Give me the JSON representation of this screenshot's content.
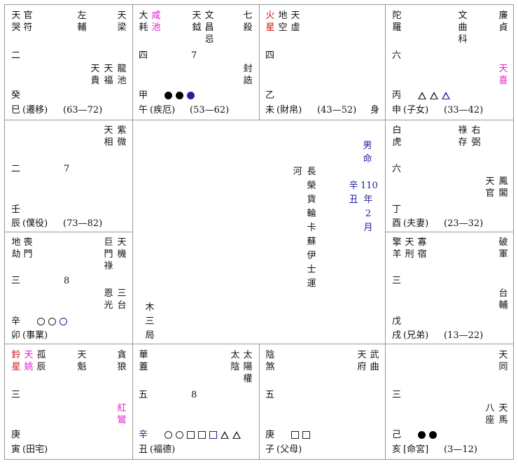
{
  "center": {
    "name": [
      "長",
      "榮",
      "貨",
      "輪",
      "卡",
      "蘇",
      "伊",
      "士",
      "運"
    ],
    "river": "河",
    "gender": [
      "男",
      "命"
    ],
    "ganzhi": [
      "辛",
      "丑"
    ],
    "year": [
      "110",
      "年",
      "2",
      "月"
    ],
    "bureau": [
      "木",
      "三",
      "局"
    ]
  },
  "palaces": {
    "si": {
      "stars": {
        "tiankua": "天哭",
        "guanfu": "官符",
        "zuofu": "左輔",
        "tianliang": "天梁",
        "tiangui": "天貴",
        "tianfu": "天福",
        "longchi": "龍池"
      },
      "num": "二",
      "stem": "癸",
      "branch": "巳",
      "name": "(遷移)",
      "range": "(63—72)"
    },
    "wu": {
      "stars": {
        "dahao": "大耗",
        "xianchi": "咸池",
        "tianyue": "天鉞",
        "wenchang": "文昌",
        "ji": "忌",
        "qisha": "七殺",
        "fenggao": "封誥"
      },
      "num": "四",
      "count": "7",
      "stem": "甲",
      "branch": "午",
      "name": "(疾厄)",
      "range": "(53—62)",
      "markers": [
        "fc",
        "fc",
        "fcb"
      ]
    },
    "wei": {
      "stars": {
        "huoxing": "火星",
        "dikong": "地空",
        "tianxu": "天虛"
      },
      "num": "四",
      "stem": "乙",
      "branch": "未",
      "name": "(財帛)",
      "range": "(43—52)",
      "shen": "身"
    },
    "shen": {
      "stars": {
        "tuoluo": "陀羅",
        "wenqu": "文曲",
        "ke": "科",
        "lianzhen": "廉貞",
        "tianxi": "天喜"
      },
      "num": "六",
      "stem": "丙",
      "branch": "申",
      "name": "(子女)",
      "range": "(33—42)",
      "markers": [
        "tr",
        "tr",
        "trb"
      ]
    },
    "chen": {
      "stars": {
        "tianxiang": "天相",
        "ziwei": "紫微"
      },
      "num": "二",
      "count": "7",
      "stem": "壬",
      "branch": "辰",
      "name": "(僕役)",
      "range": "(73—82)"
    },
    "you": {
      "stars": {
        "baihu": "白虎",
        "lucun": "祿存",
        "youbi": "右弼",
        "tianguan": "天官",
        "fengge": "鳳閣"
      },
      "num": "六",
      "stem": "丁",
      "branch": "酉",
      "name": "(夫妻)",
      "range": "(23—32)"
    },
    "mao": {
      "stars": {
        "dijie": "地劫",
        "sangmen": "喪門",
        "jumen": "巨門",
        "lu": "祿",
        "tianji": "天機",
        "enguang": "恩光",
        "santai": "三台"
      },
      "num": "三",
      "count": "8",
      "stem": "辛",
      "branch": "卯",
      "name": "(事業)",
      "markers": [
        "oc",
        "oc",
        "ocb"
      ]
    },
    "xu": {
      "stars": {
        "qingyang": "擎羊",
        "tianxing": "天刑",
        "guasu": "寡宿",
        "pojun": "破軍",
        "taifu": "台輔"
      },
      "num": "三",
      "stem": "戊",
      "branch": "戌",
      "name": "(兄弟)",
      "range": "(13—22)"
    },
    "yin": {
      "stars": {
        "lingxing": "鈴星",
        "tianyao": "天姚",
        "guchen": "孤辰",
        "tiankui": "天魁",
        "tanlang": "貪狼",
        "hongluan": "紅鸞"
      },
      "num": "三",
      "stem": "庚",
      "branch": "寅",
      "name": "(田宅)"
    },
    "chou": {
      "stars": {
        "huagai": "華蓋",
        "taiyin": "太陰",
        "taiyang": "太陽",
        "quan": "權"
      },
      "num": "五",
      "count": "8",
      "stem": "辛",
      "branch": "丑",
      "name": "(福德)",
      "markers": [
        "oc",
        "oc",
        "sq",
        "sq",
        "sqb",
        "tr",
        "tr"
      ]
    },
    "zi": {
      "stars": {
        "yinsha": "陰煞",
        "tianfu": "天府",
        "wuqu": "武曲"
      },
      "num": "五",
      "stem": "庚",
      "branch": "子",
      "name": "(父母)",
      "markers": [
        "sq",
        "sq"
      ]
    },
    "hai": {
      "stars": {
        "tiantong": "天同",
        "bazuo": "八座",
        "tianma": "天馬"
      },
      "num": "三",
      "stem": "己",
      "branch": "亥",
      "name": "[命宮]",
      "range": "(3—12)",
      "markers": [
        "fc",
        "fc"
      ]
    }
  }
}
